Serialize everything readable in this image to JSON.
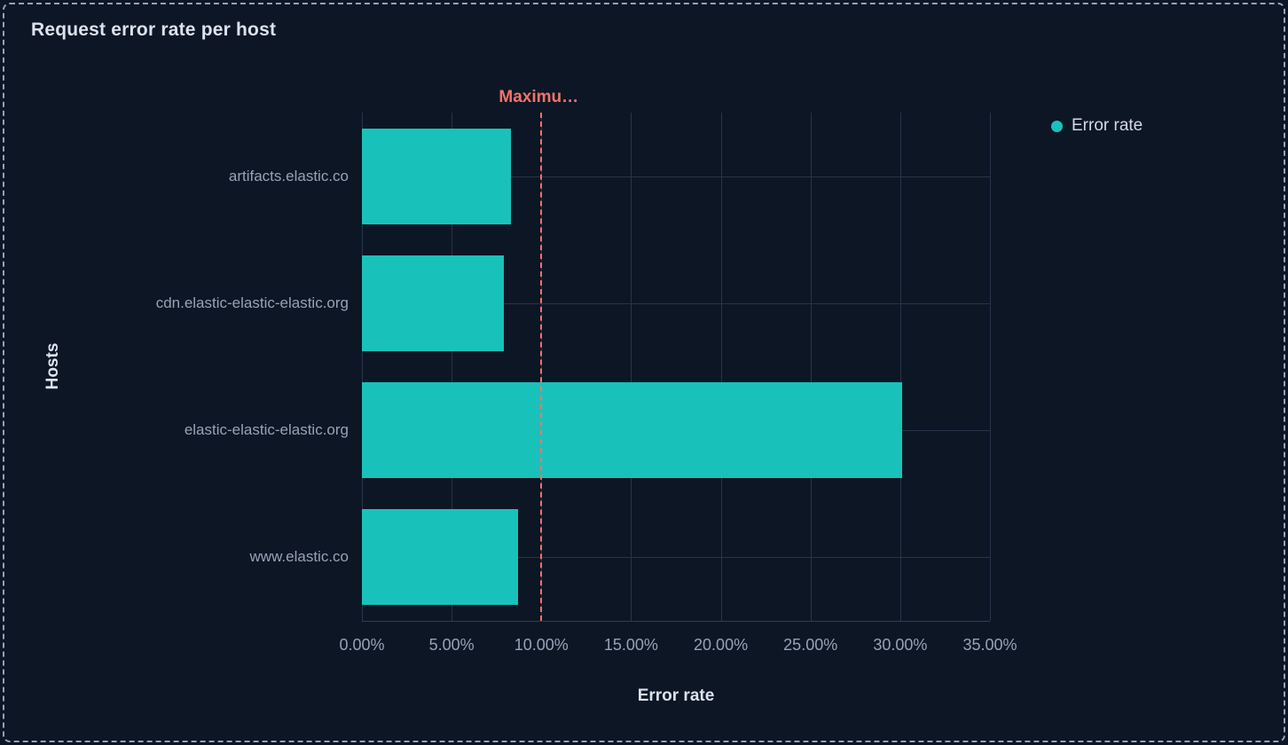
{
  "panel": {
    "title": "Request error rate per host"
  },
  "legend": {
    "items": [
      {
        "label": "Error rate",
        "color": "#18c2ba",
        "shape": "circle"
      }
    ]
  },
  "chart_data": {
    "type": "bar",
    "orientation": "horizontal",
    "title": "Request error rate per host",
    "xlabel": "Error rate",
    "ylabel": "Hosts",
    "categories": [
      "artifacts.elastic.co",
      "cdn.elastic-elastic-elastic.org",
      "elastic-elastic-elastic.org",
      "www.elastic.co"
    ],
    "series": [
      {
        "name": "Error rate",
        "color": "#18c2ba",
        "values": [
          8.3,
          7.9,
          30.1,
          8.7
        ]
      }
    ],
    "value_unit": "%",
    "xlim": [
      0,
      35
    ],
    "x_tick_step": 5,
    "x_ticks": [
      "0.00%",
      "5.00%",
      "10.00%",
      "15.00%",
      "20.00%",
      "25.00%",
      "30.00%",
      "35.00%"
    ],
    "grid": true,
    "legend_position": "top-right",
    "threshold_line": {
      "label": "Maximu…",
      "value": 10,
      "color": "#f4726b",
      "style": "dashed"
    }
  },
  "colors": {
    "background": "#0d1624",
    "panel_border": "#93a3bd",
    "gridline": "#273549",
    "axis_line": "#2e3d55",
    "bar": "#18c2ba",
    "threshold": "#f4726b",
    "heading_text": "#dbe2ee",
    "tick_text": "#98a2b7",
    "legend_text": "#d3dae6"
  }
}
